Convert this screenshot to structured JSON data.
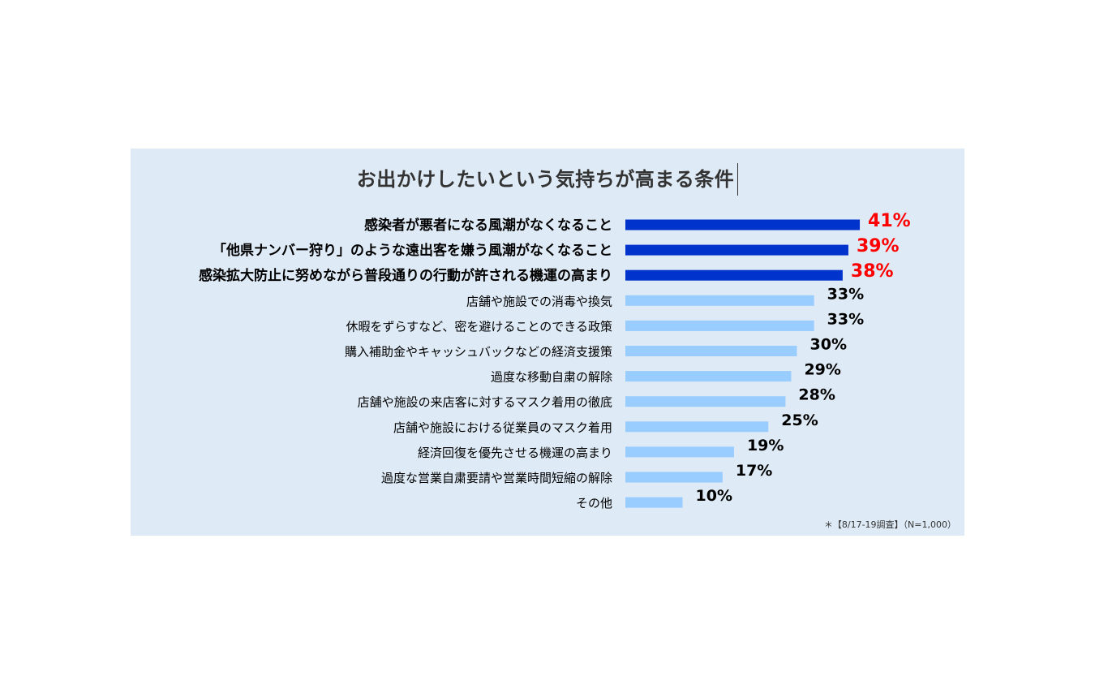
{
  "chart_data": {
    "type": "bar",
    "orientation": "horizontal",
    "title": "お出かけしたいという気持ちが高まる条件",
    "note": "＊【8/17-19調査】（N=1,000）",
    "value_suffix": "%",
    "highlight_count": 3,
    "colors": {
      "highlight_bar": "#0033cc",
      "normal_bar": "#99ccff",
      "highlight_label": "#ff0000",
      "normal_label": "#000000",
      "category_text": "#000000",
      "panel_background": "#deeaf5"
    },
    "categories": [
      "感染者が悪者になる風潮がなくなること",
      "「他県ナンバー狩り」のような遠出客を嫌う風潮がなくなること",
      "感染拡大防止に努めながら普段通りの行動が許される機運の高まり",
      "店舗や施設での消毒や換気",
      "休暇をずらすなど、密を避けることのできる政策",
      "購入補助金やキャッシュバックなどの経済支援策",
      "過度な移動自粛の解除",
      "店舗や施設の来店客に対するマスク着用の徹底",
      "店舗や施設における従業員のマスク着用",
      "経済回復を優先させる機運の高まり",
      "過度な営業自粛要請や営業時間短縮の解除",
      "その他"
    ],
    "values": [
      41,
      39,
      38,
      33,
      33,
      30,
      29,
      28,
      25,
      19,
      17,
      10
    ],
    "value_labels": [
      "41%",
      "39%",
      "38%",
      "33%",
      "33%",
      "30%",
      "29%",
      "28%",
      "25%",
      "19%",
      "17%",
      "10%"
    ]
  }
}
